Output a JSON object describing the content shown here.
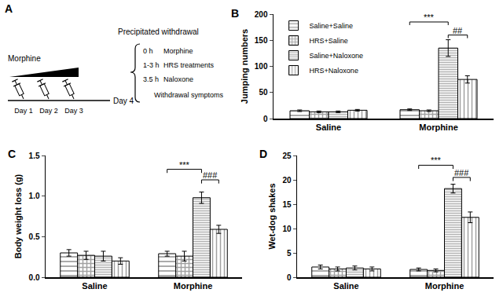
{
  "diagram": {
    "label": "A",
    "drug": "Morphine",
    "days": [
      "Day 1",
      "Day 2",
      "Day 3"
    ],
    "end_day": "Day 4",
    "heading": "Precipitated withdrawal",
    "steps": [
      {
        "time": "0 h",
        "event": "Morphine"
      },
      {
        "time": "1-3 h",
        "event": "HRS treatments"
      },
      {
        "time": "3.5 h",
        "event": "Naloxone"
      }
    ],
    "footer": "Withdrawal symptoms"
  },
  "chart_data": [
    {
      "type": "bar",
      "label": "B",
      "y_label": "Jumping numbers",
      "categories": [
        "Saline",
        "Morphine"
      ],
      "ylim": [
        0,
        200
      ],
      "yticks": [
        0,
        50,
        100,
        150,
        200
      ],
      "grid": false,
      "legend": "upper left",
      "series": [
        {
          "name": "Saline+Saline",
          "color": "#444444",
          "marker": "hlines",
          "values": [
            15,
            17
          ],
          "errors": [
            1.5,
            1.5
          ]
        },
        {
          "name": "HRS+Saline",
          "color": "#444444",
          "marker": "checker",
          "values": [
            13,
            15
          ],
          "errors": [
            1.5,
            1.5
          ]
        },
        {
          "name": "Saline+Naloxone",
          "color": "#666666",
          "marker": "dense",
          "values": [
            13,
            135
          ],
          "errors": [
            1.5,
            16
          ]
        },
        {
          "name": "HRS+Naloxone",
          "color": "#444444",
          "marker": "vlines",
          "values": [
            16,
            75
          ],
          "errors": [
            1.5,
            7
          ]
        }
      ],
      "annotations": [
        {
          "text": "***",
          "group": "Morphine",
          "from": "Saline+Saline",
          "to": "Saline+Naloxone",
          "y": 185
        },
        {
          "text": "##",
          "group": "Morphine",
          "from": "Saline+Naloxone",
          "to": "HRS+Naloxone",
          "y": 160
        }
      ]
    },
    {
      "type": "bar",
      "label": "C",
      "y_label": "Body weight loss (g)",
      "categories": [
        "Saline",
        "Morphine"
      ],
      "ylim": [
        0,
        1.5
      ],
      "yticks": [
        {
          "value": 0,
          "label": "0.0"
        },
        {
          "value": 0.5,
          "label": "0.5"
        },
        {
          "value": 1,
          "label": "1.0"
        },
        {
          "value": 1.5,
          "label": "1.5"
        }
      ],
      "grid": false,
      "series": [
        {
          "name": "Saline+Saline",
          "color": "#444444",
          "marker": "hlines",
          "values": [
            0.3,
            0.29
          ],
          "errors": [
            0.04,
            0.03
          ]
        },
        {
          "name": "HRS+Saline",
          "color": "#444444",
          "marker": "checker",
          "values": [
            0.27,
            0.26
          ],
          "errors": [
            0.05,
            0.06
          ]
        },
        {
          "name": "Saline+Naloxone",
          "color": "#666666",
          "marker": "dense",
          "values": [
            0.26,
            0.98
          ],
          "errors": [
            0.06,
            0.07
          ]
        },
        {
          "name": "HRS+Naloxone",
          "color": "#444444",
          "marker": "vlines",
          "values": [
            0.2,
            0.59
          ],
          "errors": [
            0.04,
            0.05
          ]
        }
      ],
      "annotations": [
        {
          "text": "***",
          "group": "Morphine",
          "from": "Saline+Saline",
          "to": "Saline+Naloxone",
          "y": 1.33
        },
        {
          "text": "###",
          "group": "Morphine",
          "from": "Saline+Naloxone",
          "to": "HRS+Naloxone",
          "y": 1.2
        }
      ]
    },
    {
      "type": "bar",
      "label": "D",
      "y_label": "Wet-dog shakes",
      "categories": [
        "Saline",
        "Morphine"
      ],
      "ylim": [
        0,
        25
      ],
      "yticks": [
        0,
        5,
        10,
        15,
        20,
        25
      ],
      "grid": false,
      "series": [
        {
          "name": "Saline+Saline",
          "color": "#444444",
          "marker": "hlines",
          "values": [
            2.1,
            1.6
          ],
          "errors": [
            0.4,
            0.3
          ]
        },
        {
          "name": "HRS+Saline",
          "color": "#444444",
          "marker": "checker",
          "values": [
            1.7,
            1.4
          ],
          "errors": [
            0.4,
            0.3
          ]
        },
        {
          "name": "Saline+Naloxone",
          "color": "#666666",
          "marker": "dense",
          "values": [
            1.9,
            18.2
          ],
          "errors": [
            0.4,
            0.9
          ]
        },
        {
          "name": "HRS+Naloxone",
          "color": "#444444",
          "marker": "vlines",
          "values": [
            1.7,
            12.3
          ],
          "errors": [
            0.4,
            1.1
          ]
        }
      ],
      "annotations": [
        {
          "text": "***",
          "group": "Morphine",
          "from": "Saline+Saline",
          "to": "Saline+Naloxone",
          "y": 23
        },
        {
          "text": "###",
          "group": "Morphine",
          "from": "Saline+Naloxone",
          "to": "HRS+Naloxone",
          "y": 20.5
        }
      ]
    }
  ]
}
